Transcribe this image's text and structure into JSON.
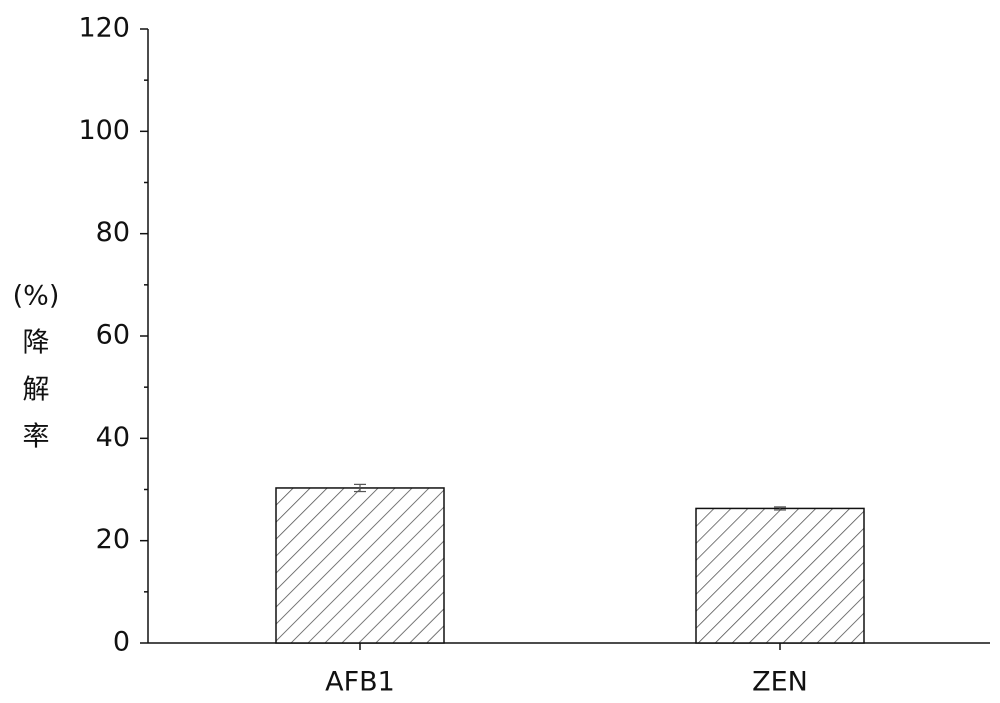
{
  "chart_data": {
    "type": "bar",
    "ylabel": [
      "(%)",
      "降",
      "解",
      "率"
    ],
    "categories": [
      "AFB1",
      "ZEN"
    ],
    "values": [
      30.3,
      26.3
    ],
    "errors": [
      0.7,
      0.3
    ],
    "color": "#555555",
    "hatch": true,
    "ylim": [
      0,
      120
    ],
    "yticks": [
      0,
      20,
      40,
      60,
      80,
      100,
      120
    ],
    "yticks_minor": [
      10,
      30,
      50,
      70,
      90,
      110
    ],
    "grid": false
  }
}
